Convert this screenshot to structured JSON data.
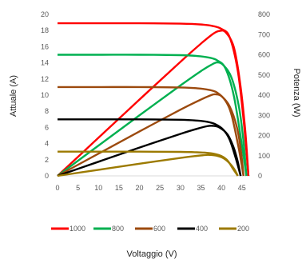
{
  "chart_data": {
    "type": "line",
    "xlabel": "Voltaggio (V)",
    "ylabel_left": "Attuale (A)",
    "ylabel_right": "Potenza (W)",
    "x_ticks": [
      0,
      5,
      10,
      15,
      20,
      25,
      30,
      35,
      40,
      45
    ],
    "xlim": [
      0,
      47
    ],
    "ylim_left": [
      0,
      20
    ],
    "y_left_ticks": [
      0,
      2,
      4,
      6,
      8,
      10,
      12,
      14,
      16,
      18,
      20
    ],
    "ylim_right": [
      0,
      800
    ],
    "y_right_ticks": [
      0,
      100,
      200,
      300,
      400,
      500,
      600,
      700,
      800
    ],
    "grid": false,
    "legend_position": "bottom",
    "series": [
      {
        "name": "1000",
        "color": "#ff0000",
        "current": {
          "x": [
            0,
            10,
            20,
            30,
            35,
            38,
            40,
            42,
            44,
            45.5,
            46.6
          ],
          "y": [
            18.9,
            18.9,
            18.9,
            18.85,
            18.75,
            18.55,
            18.2,
            17.2,
            13,
            6.5,
            0
          ]
        },
        "power": {
          "x": [
            0,
            10,
            20,
            30,
            35,
            38,
            39.5,
            41,
            43,
            44.5,
            45.8,
            46.6
          ],
          "y": [
            0,
            189,
            378,
            565,
            655,
            704,
            718,
            712,
            640,
            470,
            230,
            0
          ]
        }
      },
      {
        "name": "800",
        "color": "#00b050",
        "current": {
          "x": [
            0,
            10,
            20,
            30,
            34,
            37,
            39,
            41,
            43,
            44.8,
            46.1
          ],
          "y": [
            15,
            15,
            15,
            14.95,
            14.85,
            14.65,
            14.3,
            13.3,
            10,
            4.5,
            0
          ]
        },
        "power": {
          "x": [
            0,
            10,
            20,
            30,
            35,
            37.5,
            39,
            40.5,
            42.5,
            44.3,
            45.4,
            46.1
          ],
          "y": [
            0,
            150,
            300,
            448,
            519,
            550,
            562,
            548,
            485,
            340,
            170,
            0
          ]
        }
      },
      {
        "name": "600",
        "color": "#9c4a0e",
        "current": {
          "x": [
            0,
            10,
            20,
            30,
            34,
            37,
            39,
            41,
            42.5,
            44.2,
            45.4
          ],
          "y": [
            11,
            11,
            11,
            10.95,
            10.85,
            10.65,
            10.3,
            9.3,
            7.5,
            3.5,
            0
          ]
        },
        "power": {
          "x": [
            0,
            10,
            20,
            30,
            35,
            37.5,
            38.5,
            40,
            42,
            43.8,
            44.8,
            45.4
          ],
          "y": [
            0,
            110,
            220,
            328,
            378,
            400,
            404,
            395,
            345,
            240,
            120,
            0
          ]
        }
      },
      {
        "name": "400",
        "color": "#000000",
        "current": {
          "x": [
            0,
            10,
            20,
            30,
            34,
            36.5,
            38.5,
            40.5,
            42,
            43.5,
            44.7
          ],
          "y": [
            7,
            7,
            7,
            6.95,
            6.85,
            6.7,
            6.4,
            5.7,
            4.5,
            2.2,
            0
          ]
        },
        "power": {
          "x": [
            0,
            10,
            20,
            30,
            34,
            36.5,
            37.8,
            39.5,
            41.5,
            43,
            44,
            44.7
          ],
          "y": [
            0,
            70,
            140,
            208,
            233,
            246,
            248,
            240,
            205,
            140,
            70,
            0
          ]
        }
      },
      {
        "name": "200",
        "color": "#9c7a00",
        "current": {
          "x": [
            0,
            10,
            20,
            30,
            34,
            36.5,
            38,
            40,
            41.5,
            42.8,
            44
          ],
          "y": [
            3,
            3,
            3,
            2.97,
            2.92,
            2.85,
            2.75,
            2.45,
            1.9,
            0.9,
            0
          ]
        },
        "power": {
          "x": [
            0,
            10,
            20,
            30,
            34,
            36,
            37,
            38.8,
            40.6,
            42.2,
            43.3,
            44
          ],
          "y": [
            0,
            30,
            60,
            89,
            99,
            103,
            104,
            100,
            86,
            58,
            28,
            0
          ]
        }
      }
    ]
  }
}
